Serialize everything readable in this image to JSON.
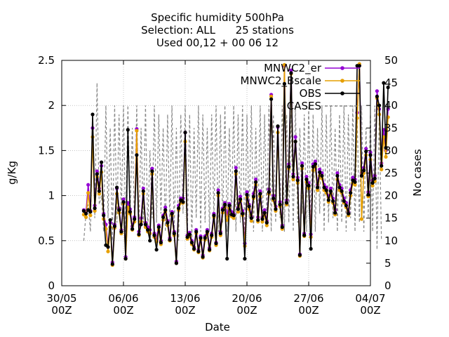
{
  "chart_data": {
    "type": "line",
    "title": [
      "Specific humidity 500hPa",
      "Selection: ALL      25 stations",
      "Used 00,12 + 00 06 12"
    ],
    "xlabel": "Date",
    "ylabel": "g/Kg",
    "y2label": "No cases",
    "xlim": [
      "2023-05-30T00:00",
      "2023-07-04T00:00"
    ],
    "ylim": [
      0,
      2.5
    ],
    "y2lim": [
      0,
      50
    ],
    "x_ticks": [
      {
        "date": "2023-05-30T00:00",
        "label1": "30/05",
        "label2": "00Z"
      },
      {
        "date": "2023-06-06T00:00",
        "label1": "06/06",
        "label2": "00Z"
      },
      {
        "date": "2023-06-13T00:00",
        "label1": "13/06",
        "label2": "00Z"
      },
      {
        "date": "2023-06-20T00:00",
        "label1": "20/06",
        "label2": "00Z"
      },
      {
        "date": "2023-06-27T00:00",
        "label1": "27/06",
        "label2": "00Z"
      },
      {
        "date": "2023-07-04T00:00",
        "label1": "04/07",
        "label2": "00Z"
      }
    ],
    "y_ticks": [
      "0",
      "0.5",
      "1",
      "1.5",
      "2",
      "2.5"
    ],
    "y2_ticks": [
      "0",
      "5",
      "10",
      "15",
      "20",
      "25",
      "30",
      "35",
      "40",
      "45",
      "50"
    ],
    "grid": true,
    "legend_position": "top-right",
    "x_start": "2023-06-01T12:00",
    "x_step_hours": 6,
    "series": [
      {
        "name": "MNWC2_er",
        "legend_label": "MNWC2_er",
        "color": "#9400d3",
        "style": "line-points",
        "values": [
          0.84,
          0.81,
          1.12,
          0.83,
          1.75,
          0.89,
          1.27,
          1.08,
          1.33,
          0.8,
          0.68,
          0.43,
          0.7,
          0.26,
          0.68,
          1.08,
          0.86,
          0.62,
          0.96,
          0.32,
          0.92,
          0.85,
          0.66,
          0.76,
          1.74,
          0.6,
          0.75,
          1.08,
          0.7,
          0.65,
          0.62,
          1.3,
          0.58,
          0.52,
          0.67,
          0.5,
          0.78,
          0.87,
          0.72,
          0.53,
          0.82,
          0.6,
          0.27,
          0.89,
          0.97,
          0.97,
          1.7,
          0.56,
          0.59,
          0.5,
          0.43,
          0.62,
          0.4,
          0.55,
          0.34,
          0.55,
          0.62,
          0.42,
          0.58,
          0.8,
          0.48,
          1.06,
          0.6,
          0.86,
          0.92,
          0.78,
          0.91,
          0.82,
          0.8,
          1.31,
          0.87,
          0.99,
          0.83,
          0.47,
          1.04,
          0.9,
          0.77,
          1.02,
          1.18,
          0.76,
          1.05,
          0.76,
          0.84,
          0.72,
          1.07,
          2.12,
          1.0,
          0.88,
          1.76,
          0.93,
          0.67,
          2.44,
          0.95,
          1.35,
          2.39,
          1.24,
          1.65,
          1.2,
          0.35,
          1.36,
          0.58,
          1.21,
          1.14,
          0.57,
          1.35,
          1.38,
          1.12,
          1.29,
          1.25,
          1.12,
          1.09,
          0.98,
          1.08,
          0.97,
          0.84,
          1.25,
          1.12,
          1.08,
          0.97,
          0.92,
          0.82,
          1.06,
          1.2,
          1.18,
          1.92,
          2.44,
          1.25,
          1.31,
          1.52,
          1.04,
          1.48,
          1.17,
          1.22,
          2.16,
          1.96,
          1.36,
          1.73,
          1.5,
          1.96
        ]
      },
      {
        "name": "MNWC2_Bscale",
        "legend_label": "MNWC2_Bscale",
        "color": "#e69f00",
        "style": "line-points",
        "values": [
          0.79,
          0.76,
          1.03,
          0.78,
          1.65,
          0.83,
          1.21,
          1.02,
          1.26,
          0.74,
          0.63,
          0.38,
          0.65,
          0.23,
          0.64,
          1.02,
          0.81,
          0.58,
          0.91,
          0.3,
          0.87,
          0.8,
          0.62,
          0.71,
          1.72,
          0.56,
          0.71,
          1.02,
          0.65,
          0.6,
          0.58,
          1.24,
          0.54,
          0.49,
          0.62,
          0.46,
          0.73,
          0.82,
          0.67,
          0.5,
          0.78,
          0.56,
          0.25,
          0.84,
          0.92,
          0.92,
          1.6,
          0.52,
          0.55,
          0.46,
          0.4,
          0.58,
          0.37,
          0.51,
          0.31,
          0.51,
          0.58,
          0.39,
          0.54,
          0.76,
          0.45,
          1.0,
          0.56,
          0.81,
          0.87,
          0.73,
          0.86,
          0.77,
          0.75,
          1.24,
          0.82,
          0.94,
          0.78,
          0.44,
          0.98,
          0.85,
          0.72,
          0.97,
          1.12,
          0.71,
          0.99,
          0.71,
          0.79,
          0.67,
          1.02,
          2.1,
          0.95,
          0.83,
          1.7,
          0.88,
          0.63,
          2.45,
          0.9,
          1.3,
          2.35,
          1.18,
          1.6,
          1.14,
          0.33,
          1.3,
          0.55,
          1.15,
          1.08,
          0.54,
          1.28,
          1.32,
          1.06,
          1.22,
          1.19,
          1.06,
          1.03,
          0.93,
          1.02,
          0.92,
          0.79,
          1.18,
          1.06,
          1.03,
          0.92,
          0.87,
          0.78,
          1.0,
          1.14,
          1.12,
          1.86,
          2.46,
          0.74,
          1.25,
          1.45,
          0.99,
          1.4,
          1.11,
          1.16,
          2.08,
          1.9,
          1.29,
          1.65,
          1.43,
          1.87
        ]
      },
      {
        "name": "OBS",
        "legend_label": "OBS",
        "color": "#000000",
        "style": "line-points",
        "values": [
          0.83,
          0.8,
          0.84,
          0.82,
          1.9,
          0.86,
          1.24,
          1.05,
          1.37,
          0.78,
          0.45,
          0.43,
          0.73,
          0.24,
          0.66,
          1.09,
          0.84,
          0.6,
          0.93,
          0.3,
          1.73,
          0.82,
          0.63,
          0.74,
          1.45,
          0.57,
          0.68,
          1.05,
          0.68,
          0.62,
          0.5,
          1.27,
          0.56,
          0.4,
          0.65,
          0.48,
          0.76,
          0.84,
          0.7,
          0.51,
          0.8,
          0.58,
          0.25,
          0.86,
          0.95,
          0.93,
          1.7,
          0.54,
          0.57,
          0.48,
          0.41,
          0.6,
          0.38,
          0.53,
          0.32,
          0.53,
          0.6,
          0.4,
          0.56,
          0.78,
          0.47,
          1.03,
          0.58,
          0.84,
          0.9,
          0.3,
          0.89,
          0.79,
          0.78,
          1.27,
          0.85,
          0.96,
          0.8,
          0.3,
          1.01,
          0.88,
          0.75,
          0.99,
          1.15,
          0.73,
          1.02,
          0.74,
          0.81,
          0.7,
          1.04,
          2.07,
          0.97,
          0.85,
          1.77,
          0.9,
          0.65,
          2.24,
          0.92,
          1.32,
          2.36,
          1.21,
          1.6,
          1.17,
          0.34,
          1.33,
          0.56,
          1.18,
          1.11,
          0.41,
          1.32,
          1.35,
          1.09,
          1.26,
          1.22,
          1.09,
          1.06,
          0.95,
          1.05,
          0.94,
          0.81,
          1.22,
          1.09,
          1.05,
          0.94,
          0.89,
          0.8,
          1.03,
          1.17,
          1.15,
          2.44,
          2.44,
          1.22,
          1.28,
          1.49,
          1.01,
          1.45,
          1.14,
          1.19,
          2.1,
          2.0,
          1.33,
          2.25,
          1.53,
          2.2
        ]
      },
      {
        "name": "CASES",
        "legend_label": "CASES",
        "color": "#888888",
        "style": "dashed",
        "axis": "y2",
        "values": [
          10,
          16,
          18,
          12,
          35,
          15,
          45,
          18,
          20,
          12,
          40,
          15,
          35,
          10,
          40,
          14,
          38,
          16,
          40,
          12,
          40,
          16,
          35,
          14,
          40,
          12,
          35,
          14,
          40,
          12,
          30,
          15,
          40,
          14,
          38,
          16,
          35,
          12,
          38,
          14,
          40,
          12,
          35,
          10,
          38,
          16,
          40,
          12,
          38,
          10,
          35,
          15,
          40,
          12,
          38,
          14,
          35,
          12,
          38,
          15,
          40,
          12,
          38,
          14,
          40,
          12,
          35,
          15,
          40,
          12,
          38,
          14,
          40,
          10,
          38,
          15,
          40,
          12,
          35,
          14,
          40,
          12,
          38,
          16,
          40,
          12,
          38,
          14,
          35,
          15,
          40,
          12,
          38,
          14,
          38,
          12,
          40,
          14,
          35,
          16,
          38,
          12,
          40,
          14,
          38,
          12,
          35,
          16,
          40,
          12,
          38,
          14,
          40,
          15,
          35,
          12,
          38,
          14,
          40,
          12,
          38,
          15,
          40,
          12,
          38,
          14,
          40,
          12,
          35,
          15,
          38,
          12,
          40,
          8,
          38,
          10
        ]
      }
    ]
  }
}
